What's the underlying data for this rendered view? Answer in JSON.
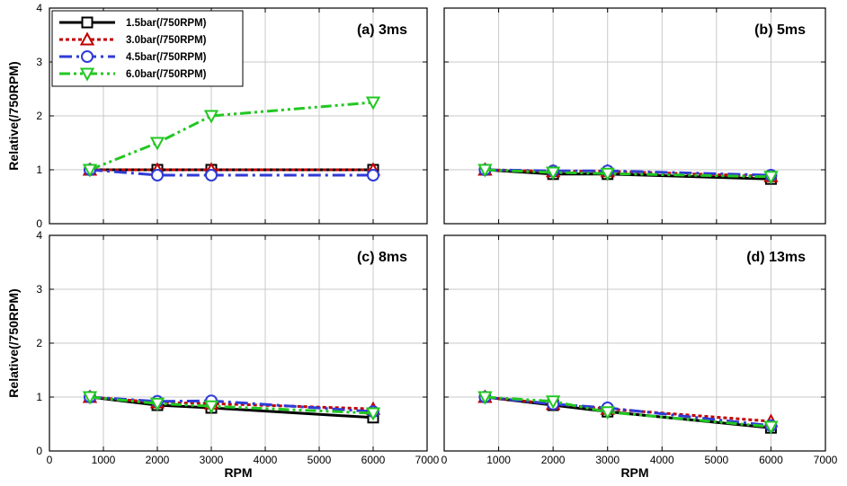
{
  "chart_data": {
    "type": "line",
    "layout": "2x2 grid",
    "grid": true,
    "legend_placement": "top-left of panel (a)",
    "x": [
      750,
      2000,
      3000,
      6000
    ],
    "xlabel": "RPM",
    "ylabel": "Relative(/750RPM)",
    "xlim": [
      0,
      7000
    ],
    "ylim": [
      0,
      4
    ],
    "xticks": [
      0,
      1000,
      2000,
      3000,
      4000,
      5000,
      6000,
      7000
    ],
    "yticks": [
      0,
      1,
      2,
      3,
      4
    ],
    "series_styles": [
      {
        "name": "1.5bar(/750RPM)",
        "color": "#000000",
        "marker": "square",
        "line": "solid"
      },
      {
        "name": "3.0bar(/750RPM)",
        "color": "#c00000",
        "marker": "triangle-up",
        "line": "dotted"
      },
      {
        "name": "4.5bar(/750RPM)",
        "color": "#2f3bd6",
        "marker": "circle",
        "line": "dashdot"
      },
      {
        "name": "6.0bar(/750RPM)",
        "color": "#22c722",
        "marker": "triangle-down",
        "line": "dashdotdot"
      }
    ],
    "panels": [
      {
        "title": "(a) 3ms",
        "series": [
          {
            "name": "1.5bar(/750RPM)",
            "values": [
              1.0,
              1.0,
              1.0,
              1.0
            ]
          },
          {
            "name": "3.0bar(/750RPM)",
            "values": [
              1.0,
              1.0,
              1.0,
              1.0
            ]
          },
          {
            "name": "4.5bar(/750RPM)",
            "values": [
              1.0,
              0.9,
              0.9,
              0.9
            ]
          },
          {
            "name": "6.0bar(/750RPM)",
            "values": [
              1.0,
              1.5,
              2.0,
              2.25
            ]
          }
        ]
      },
      {
        "title": "(b) 5ms",
        "series": [
          {
            "name": "1.5bar(/750RPM)",
            "values": [
              1.0,
              0.92,
              0.92,
              0.83
            ]
          },
          {
            "name": "3.0bar(/750RPM)",
            "values": [
              1.0,
              0.97,
              0.97,
              0.88
            ]
          },
          {
            "name": "4.5bar(/750RPM)",
            "values": [
              1.0,
              0.98,
              0.98,
              0.9
            ]
          },
          {
            "name": "6.0bar(/750RPM)",
            "values": [
              1.0,
              0.95,
              0.93,
              0.87
            ]
          }
        ]
      },
      {
        "title": "(c) 8ms",
        "series": [
          {
            "name": "1.5bar(/750RPM)",
            "values": [
              1.0,
              0.85,
              0.8,
              0.62
            ]
          },
          {
            "name": "3.0bar(/750RPM)",
            "values": [
              1.0,
              0.9,
              0.88,
              0.78
            ]
          },
          {
            "name": "4.5bar(/750RPM)",
            "values": [
              1.0,
              0.92,
              0.93,
              0.73
            ]
          },
          {
            "name": "6.0bar(/750RPM)",
            "values": [
              1.0,
              0.88,
              0.83,
              0.7
            ]
          }
        ]
      },
      {
        "title": "(d) 13ms",
        "series": [
          {
            "name": "1.5bar(/750RPM)",
            "values": [
              1.0,
              0.85,
              0.73,
              0.43
            ]
          },
          {
            "name": "3.0bar(/750RPM)",
            "values": [
              1.0,
              0.87,
              0.78,
              0.55
            ]
          },
          {
            "name": "4.5bar(/750RPM)",
            "values": [
              1.0,
              0.87,
              0.8,
              0.47
            ]
          },
          {
            "name": "6.0bar(/750RPM)",
            "values": [
              1.0,
              0.92,
              0.72,
              0.45
            ]
          }
        ]
      }
    ]
  }
}
